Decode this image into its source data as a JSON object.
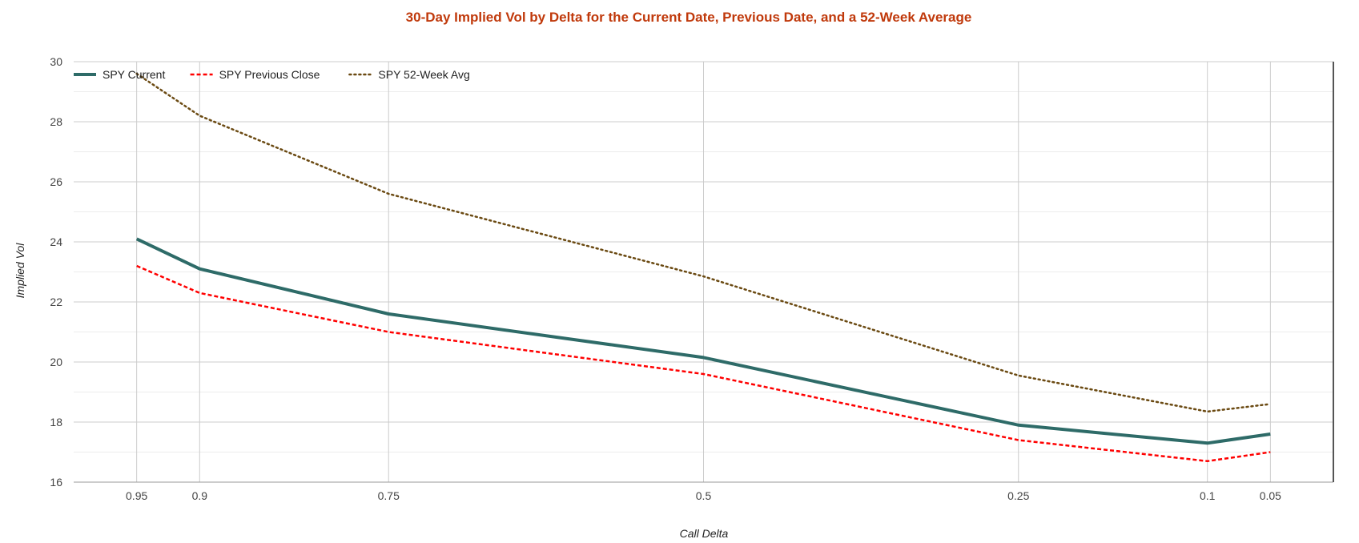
{
  "chart_data": {
    "type": "line",
    "title": "30-Day Implied Vol by Delta for the Current Date, Previous Date, and a 52-Week Average",
    "xlabel": "Call Delta",
    "ylabel": "Implied Vol",
    "x": [
      0.95,
      0.9,
      0.75,
      0.5,
      0.25,
      0.1,
      0.05
    ],
    "x_tick_labels": [
      "0.95",
      "0.9",
      "0.75",
      "0.5",
      "0.25",
      "0.1",
      "0.05"
    ],
    "x_reversed": true,
    "xlim": [
      1.0,
      0.0
    ],
    "ylim": [
      16,
      30
    ],
    "y_ticks": [
      16,
      18,
      20,
      22,
      24,
      26,
      28,
      30
    ],
    "grid": true,
    "legend_position": "top-left",
    "series": [
      {
        "name": "SPY Current",
        "color": "#2e6b68",
        "style": "solid",
        "values": [
          24.1,
          23.1,
          21.6,
          20.15,
          17.9,
          17.3,
          17.6
        ]
      },
      {
        "name": "SPY Previous Close",
        "color": "#ff0000",
        "style": "dashed",
        "values": [
          23.2,
          22.3,
          21.0,
          19.6,
          17.4,
          16.7,
          17.0
        ]
      },
      {
        "name": "SPY 52-Week Avg",
        "color": "#6b4a12",
        "style": "dotted",
        "values": [
          29.6,
          28.2,
          25.6,
          22.85,
          19.55,
          18.35,
          18.6
        ]
      }
    ],
    "title_color": "#c0390b"
  }
}
